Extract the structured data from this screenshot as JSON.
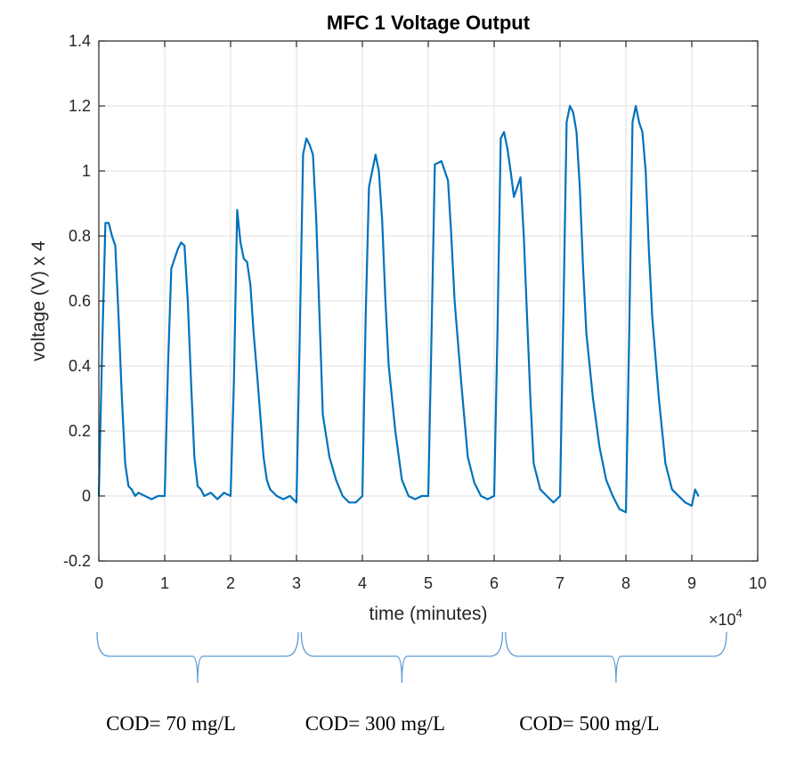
{
  "chart_data": {
    "type": "line",
    "title": "MFC 1 Voltage Output",
    "xlabel": "time (minutes)",
    "ylabel": "voltage (V) x 4",
    "x_multiplier_label": "×10",
    "x_multiplier_exponent": "4",
    "xlim": [
      0,
      10
    ],
    "ylim": [
      -0.2,
      1.4
    ],
    "xticks": [
      "0",
      "1",
      "2",
      "3",
      "4",
      "5",
      "6",
      "7",
      "8",
      "9",
      "10"
    ],
    "yticks": [
      "-0.2",
      "0",
      "0.2",
      "0.4",
      "0.6",
      "0.8",
      "1",
      "1.2",
      "1.4"
    ],
    "grid": true,
    "series": [
      {
        "color": "#0072bd",
        "x": [
          0,
          0.05,
          0.1,
          0.15,
          0.2,
          0.25,
          0.3,
          0.35,
          0.4,
          0.45,
          0.5,
          0.55,
          0.6,
          0.7,
          0.8,
          0.9,
          1.0,
          1.05,
          1.1,
          1.15,
          1.2,
          1.25,
          1.3,
          1.35,
          1.4,
          1.45,
          1.5,
          1.55,
          1.6,
          1.7,
          1.8,
          1.9,
          2.0,
          2.05,
          2.1,
          2.15,
          2.2,
          2.25,
          2.3,
          2.35,
          2.4,
          2.45,
          2.5,
          2.55,
          2.6,
          2.7,
          2.8,
          2.9,
          3.0,
          3.05,
          3.1,
          3.15,
          3.2,
          3.25,
          3.3,
          3.35,
          3.4,
          3.5,
          3.6,
          3.7,
          3.8,
          3.9,
          4.0,
          4.05,
          4.1,
          4.15,
          4.2,
          4.25,
          4.3,
          4.35,
          4.4,
          4.5,
          4.6,
          4.7,
          4.8,
          4.9,
          5.0,
          5.05,
          5.1,
          5.2,
          5.3,
          5.35,
          5.4,
          5.5,
          5.6,
          5.7,
          5.8,
          5.9,
          6.0,
          6.05,
          6.1,
          6.15,
          6.2,
          6.25,
          6.3,
          6.35,
          6.4,
          6.45,
          6.5,
          6.55,
          6.6,
          6.7,
          6.8,
          6.9,
          7.0,
          7.05,
          7.1,
          7.15,
          7.2,
          7.25,
          7.3,
          7.35,
          7.4,
          7.5,
          7.6,
          7.7,
          7.8,
          7.9,
          8.0,
          8.05,
          8.1,
          8.15,
          8.2,
          8.25,
          8.3,
          8.35,
          8.4,
          8.5,
          8.6,
          8.7,
          8.8,
          8.9,
          9.0,
          9.05,
          9.1
        ],
        "y": [
          0.0,
          0.45,
          0.84,
          0.84,
          0.8,
          0.77,
          0.55,
          0.3,
          0.1,
          0.03,
          0.02,
          0.0,
          0.01,
          0.0,
          -0.01,
          0.0,
          0.0,
          0.4,
          0.7,
          0.73,
          0.76,
          0.78,
          0.77,
          0.6,
          0.35,
          0.12,
          0.03,
          0.02,
          0.0,
          0.01,
          -0.01,
          0.01,
          0.0,
          0.35,
          0.88,
          0.78,
          0.73,
          0.72,
          0.65,
          0.5,
          0.38,
          0.25,
          0.12,
          0.05,
          0.02,
          0.0,
          -0.01,
          0.0,
          -0.02,
          0.5,
          1.05,
          1.1,
          1.08,
          1.05,
          0.85,
          0.55,
          0.25,
          0.12,
          0.05,
          0.0,
          -0.02,
          -0.02,
          0.0,
          0.55,
          0.95,
          1.0,
          1.05,
          1.0,
          0.85,
          0.6,
          0.4,
          0.2,
          0.05,
          0.0,
          -0.01,
          0.0,
          0.0,
          0.5,
          1.02,
          1.03,
          0.97,
          0.8,
          0.6,
          0.35,
          0.12,
          0.04,
          0.0,
          -0.01,
          0.0,
          0.5,
          1.1,
          1.12,
          1.07,
          1.0,
          0.92,
          0.95,
          0.98,
          0.8,
          0.55,
          0.3,
          0.1,
          0.02,
          0.0,
          -0.02,
          0.0,
          0.55,
          1.15,
          1.2,
          1.18,
          1.12,
          0.95,
          0.7,
          0.5,
          0.3,
          0.15,
          0.05,
          0.0,
          -0.04,
          -0.05,
          0.5,
          1.15,
          1.2,
          1.15,
          1.12,
          1.0,
          0.75,
          0.55,
          0.3,
          0.1,
          0.02,
          0.0,
          -0.02,
          -0.03,
          0.02,
          0.0
        ]
      }
    ],
    "annotations": [
      {
        "text": "COD= 70 mg/L",
        "x_start": 0,
        "x_end": 3
      },
      {
        "text": "COD= 300 mg/L",
        "x_start": 3.1,
        "x_end": 6.1
      },
      {
        "text": "COD= 500 mg/L",
        "x_start": 6.2,
        "x_end": 9.5
      }
    ]
  }
}
